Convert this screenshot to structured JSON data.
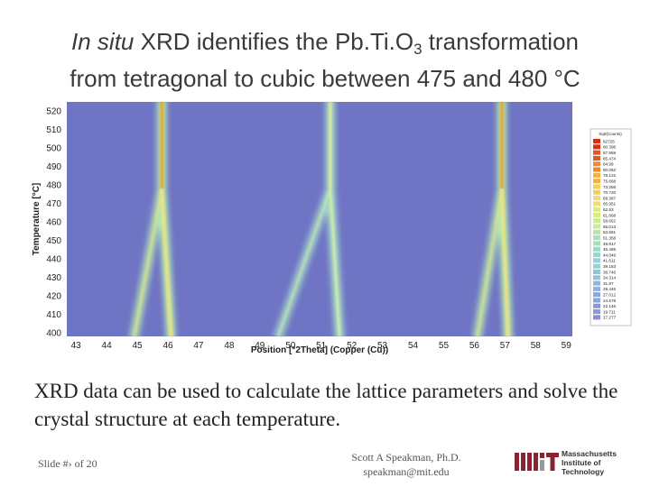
{
  "slide": {
    "title_italic": "In situ",
    "title_part1": " XRD identifies the Pb.Ti.O",
    "title_sub": "3",
    "title_part2": " transformation",
    "title_line2": "from tetragonal to cubic between 475 and 480 °C",
    "body": "XRD data can be used to calculate the lattice parameters and solve the crystal structure at each temperature.",
    "footer_left": "Slide #› of 20",
    "author": "Scott A Speakman, Ph.D.",
    "email": "speakman@mit.edu",
    "logo_text": [
      "Massachusetts",
      "Institute of",
      "Technology"
    ]
  },
  "chart_data": {
    "type": "heatmap",
    "xlabel": "Position [°2Theta] (Copper (Cu))",
    "ylabel": "Temperature [°C]",
    "xlim": [
      42.7,
      59.2
    ],
    "ylim": [
      398,
      525
    ],
    "x_ticks": [
      43,
      44,
      45,
      46,
      47,
      48,
      49,
      50,
      51,
      52,
      53,
      54,
      55,
      56,
      57,
      58,
      59
    ],
    "y_ticks": [
      400,
      410,
      420,
      430,
      440,
      450,
      460,
      470,
      480,
      490,
      500,
      510,
      520
    ],
    "transition_temperature": 478,
    "peaks": [
      {
        "low_T_positions": [
          44.9,
          46.1
        ],
        "high_T_position": 45.8,
        "intensity": "high"
      },
      {
        "low_T_positions": [
          49.6,
          51.6
        ],
        "high_T_position": 51.3,
        "intensity": "medium"
      },
      {
        "low_T_positions": [
          56.1,
          57.1
        ],
        "high_T_position": 56.9,
        "intensity": "high"
      }
    ],
    "legend": {
      "title": "Sqrt(Counts)",
      "values": [
        "82725",
        "80.396",
        "87.868",
        "85.474",
        "84.99",
        "80.052",
        "78.122",
        "75.668",
        "73.256",
        "70.720",
        "68.387",
        "65.951",
        "62.53",
        "61.668",
        "58.652",
        "56.013",
        "53.581",
        "51.358",
        "48.917",
        "46.485",
        "44.049",
        "41.611",
        "39.183",
        "36.746",
        "34.314",
        "31.87",
        "29.446",
        "27.012",
        "24.579",
        "22.146",
        "19.711",
        "17.277"
      ]
    }
  }
}
